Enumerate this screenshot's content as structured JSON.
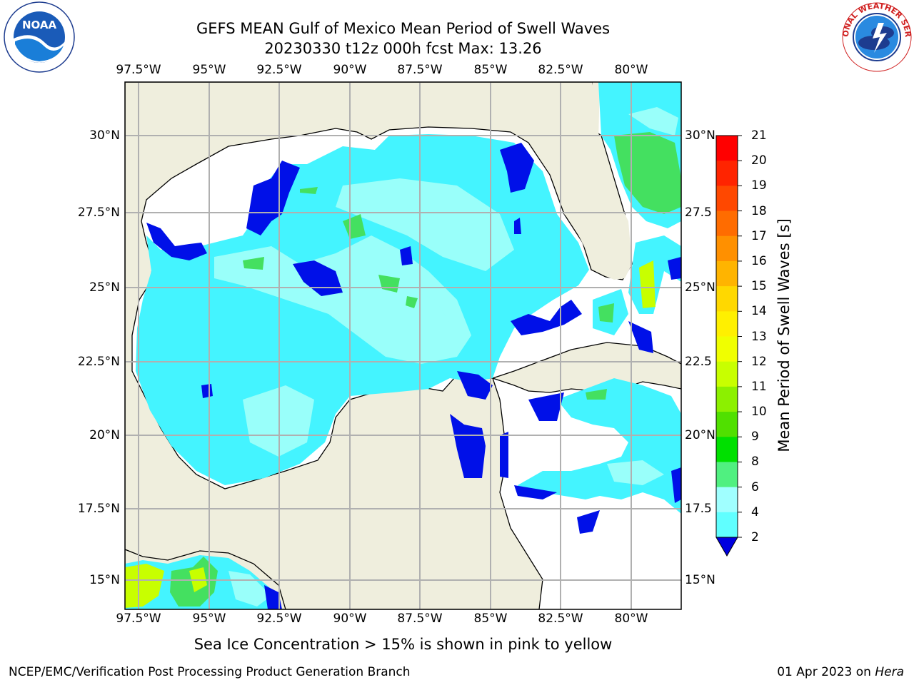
{
  "title": {
    "line1": "GEFS MEAN Gulf of Mexico Mean Period of Swell Waves",
    "line2": "20230330 t12z 000h fcst   Max: 13.26"
  },
  "axes": {
    "lon_labels": [
      "97.5°W",
      "95°W",
      "92.5°W",
      "90°W",
      "87.5°W",
      "85°W",
      "82.5°W",
      "80°W"
    ],
    "lat_labels_left": [
      "30°N",
      "27.5°N",
      "25°N",
      "22.5°N",
      "20°N",
      "17.5°N",
      "15°N"
    ],
    "lat_labels_right": [
      "30°N",
      "27.5",
      "25°N",
      "22.5",
      "20°N",
      "17.5",
      "15°N"
    ]
  },
  "colorbar": {
    "label": "Mean Period of Swell Waves [s]",
    "ticks": [
      "21",
      "20",
      "19",
      "18",
      "17",
      "16",
      "15",
      "14",
      "13",
      "12",
      "11",
      "10",
      "9",
      "8",
      "6",
      "4",
      "2"
    ],
    "colors": [
      "#ff0000",
      "#ff2400",
      "#ff4800",
      "#ff6c00",
      "#ff9000",
      "#ffb400",
      "#ffd800",
      "#fff000",
      "#f0ff00",
      "#c8ff00",
      "#8cf000",
      "#50e000",
      "#00e000",
      "#50f080",
      "#a0ffff",
      "#60ffff",
      "#00e8ff",
      "#0090ff",
      "#0040ff",
      "#0000e0"
    ]
  },
  "footer": {
    "note": "Sea Ice Concentration > 15% is shown in pink to yellow",
    "credit": "NCEP/EMC/Verification Post Processing Product Generation Branch",
    "date": "01 Apr 2023 on ",
    "machine": "Hera"
  },
  "logos": {
    "left": "NOAA",
    "right": "NATIONAL WEATHER SERVICE"
  },
  "map": {
    "land_color": "#efeedd",
    "ocean_base": "#44f4ff",
    "ocean_light": "#99fffa",
    "deep_blue": "#0010e8",
    "green": "#44e060"
  }
}
